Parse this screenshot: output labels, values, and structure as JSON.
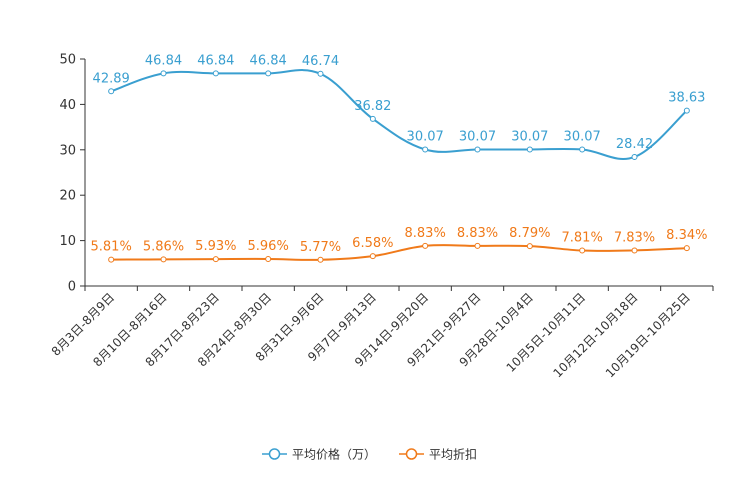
{
  "chart_data": {
    "type": "line",
    "categories": [
      "8月3日-8月9日",
      "8月10日-8月16日",
      "8月17日-8月23日",
      "8月24日-8月30日",
      "8月31日-9月6日",
      "9月7日-9月13日",
      "9月14日-9月20日",
      "9月21日-9月27日",
      "9月28日-10月4日",
      "10月5日-10月11日",
      "10月12日-10月18日",
      "10月19日-10月25日"
    ],
    "series": [
      {
        "name": "平均价格（万）",
        "color": "#3a9fd0",
        "values": [
          42.89,
          46.84,
          46.84,
          46.84,
          46.74,
          36.82,
          30.07,
          30.07,
          30.07,
          30.07,
          28.42,
          38.63
        ],
        "labels": [
          "42.89",
          "46.84",
          "46.84",
          "46.84",
          "46.74",
          "36.82",
          "30.07",
          "30.07",
          "30.07",
          "30.07",
          "28.42",
          "38.63"
        ]
      },
      {
        "name": "平均折扣",
        "color": "#f07a1a",
        "values": [
          5.81,
          5.86,
          5.93,
          5.96,
          5.77,
          6.58,
          8.83,
          8.83,
          8.79,
          7.81,
          7.83,
          8.34
        ],
        "labels": [
          "5.81%",
          "5.86%",
          "5.93%",
          "5.96%",
          "5.77%",
          "6.58%",
          "8.83%",
          "8.83%",
          "8.79%",
          "7.81%",
          "7.83%",
          "8.34%"
        ]
      }
    ],
    "yticks": [
      "0",
      "10",
      "20",
      "30",
      "40",
      "50"
    ],
    "ylim": [
      0,
      50
    ],
    "title": "",
    "xlabel": "",
    "ylabel": "",
    "legend_position": "bottom-center"
  }
}
